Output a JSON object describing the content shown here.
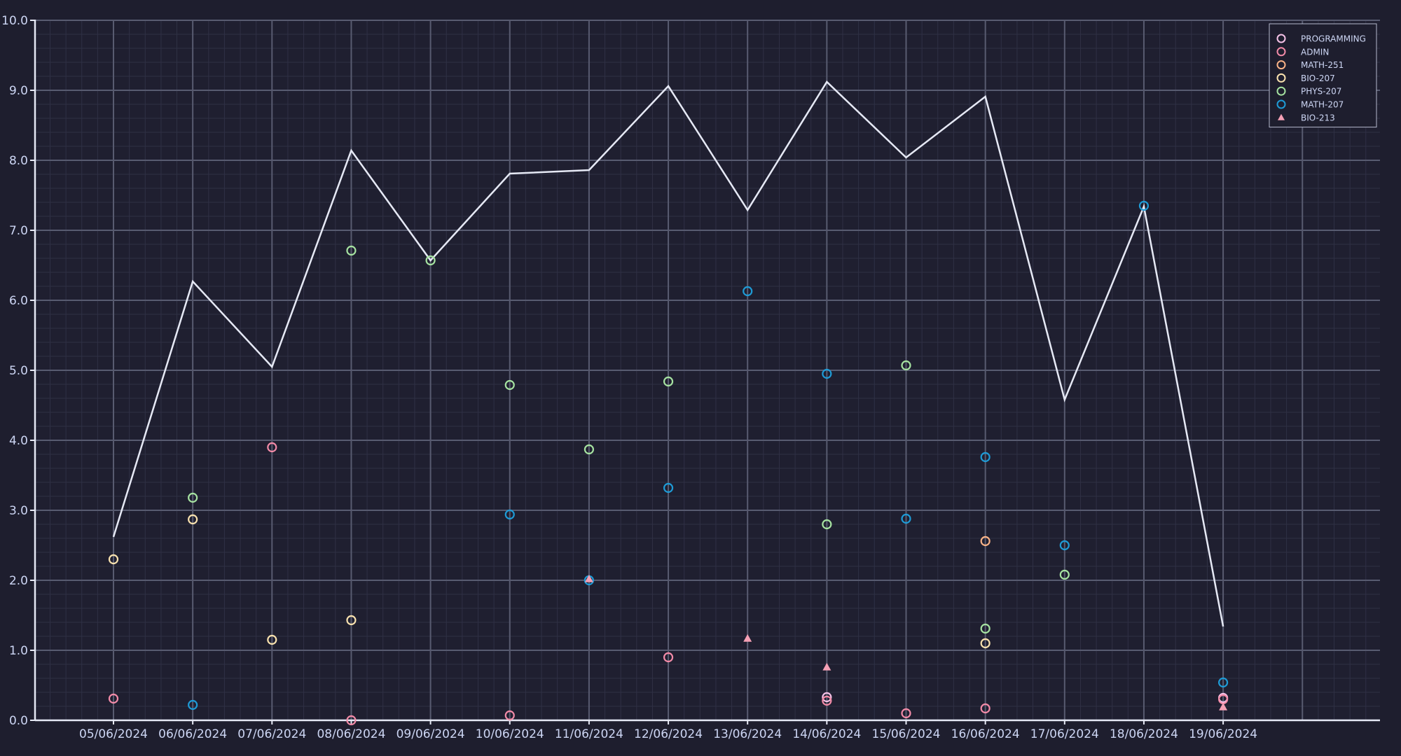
{
  "chart_data": {
    "type": "scatter",
    "title": "",
    "xlabel": "",
    "ylabel": "",
    "ylim": [
      0,
      10
    ],
    "y_ticks": [
      "0.0",
      "1.0",
      "2.0",
      "3.0",
      "4.0",
      "5.0",
      "6.0",
      "7.0",
      "8.0",
      "9.0",
      "10.0"
    ],
    "x": [
      "05/06/2024",
      "06/06/2024",
      "07/06/2024",
      "08/06/2024",
      "09/06/2024",
      "10/06/2024",
      "11/06/2024",
      "12/06/2024",
      "13/06/2024",
      "14/06/2024",
      "15/06/2024",
      "16/06/2024",
      "17/06/2024",
      "18/06/2024",
      "19/06/2024"
    ],
    "grid": true,
    "legend_position": "top-right",
    "line": {
      "color": "#e6e9f5",
      "values": [
        2.62,
        6.27,
        5.05,
        8.14,
        6.57,
        7.81,
        7.86,
        9.06,
        7.29,
        9.12,
        8.04,
        8.91,
        4.58,
        7.34,
        1.34
      ]
    },
    "series": [
      {
        "name": "PROGRAMMING",
        "marker": "circle",
        "color": "#f5c2e7",
        "points": [
          [
            "14/06/2024",
            0.33
          ],
          [
            "19/06/2024",
            0.32
          ]
        ]
      },
      {
        "name": "ADMIN",
        "marker": "circle",
        "color": "#f38ba8",
        "points": [
          [
            "05/06/2024",
            0.31
          ],
          [
            "07/06/2024",
            3.9
          ],
          [
            "08/06/2024",
            0.0
          ],
          [
            "10/06/2024",
            0.07
          ],
          [
            "12/06/2024",
            0.9
          ],
          [
            "14/06/2024",
            0.28
          ],
          [
            "15/06/2024",
            0.1
          ],
          [
            "16/06/2024",
            0.17
          ],
          [
            "19/06/2024",
            0.3
          ]
        ]
      },
      {
        "name": "MATH-251",
        "marker": "circle",
        "color": "#fab387",
        "points": [
          [
            "16/06/2024",
            2.56
          ]
        ]
      },
      {
        "name": "BIO-207",
        "marker": "circle",
        "color": "#f9e2af",
        "points": [
          [
            "05/06/2024",
            2.3
          ],
          [
            "06/06/2024",
            2.87
          ],
          [
            "07/06/2024",
            1.15
          ],
          [
            "08/06/2024",
            1.43
          ],
          [
            "16/06/2024",
            1.1
          ]
        ]
      },
      {
        "name": "PHYS-207",
        "marker": "circle",
        "color": "#a6e3a1",
        "points": [
          [
            "06/06/2024",
            3.18
          ],
          [
            "08/06/2024",
            6.71
          ],
          [
            "09/06/2024",
            6.57
          ],
          [
            "10/06/2024",
            4.79
          ],
          [
            "11/06/2024",
            3.87
          ],
          [
            "12/06/2024",
            4.84
          ],
          [
            "14/06/2024",
            2.8
          ],
          [
            "15/06/2024",
            5.07
          ],
          [
            "16/06/2024",
            1.31
          ],
          [
            "17/06/2024",
            2.08
          ]
        ]
      },
      {
        "name": "MATH-207",
        "marker": "circle",
        "color": "#1e9bd6",
        "points": [
          [
            "06/06/2024",
            0.22
          ],
          [
            "10/06/2024",
            2.94
          ],
          [
            "11/06/2024",
            2.0
          ],
          [
            "12/06/2024",
            3.32
          ],
          [
            "13/06/2024",
            6.13
          ],
          [
            "14/06/2024",
            4.95
          ],
          [
            "15/06/2024",
            2.88
          ],
          [
            "16/06/2024",
            3.76
          ],
          [
            "17/06/2024",
            2.5
          ],
          [
            "18/06/2024",
            7.35
          ],
          [
            "19/06/2024",
            0.54
          ]
        ]
      },
      {
        "name": "BIO-213",
        "marker": "triangle",
        "color": "#f5a0b5",
        "points": [
          [
            "11/06/2024",
            2.02
          ],
          [
            "13/06/2024",
            1.17
          ],
          [
            "14/06/2024",
            0.76
          ],
          [
            "19/06/2024",
            0.19
          ]
        ]
      }
    ]
  }
}
